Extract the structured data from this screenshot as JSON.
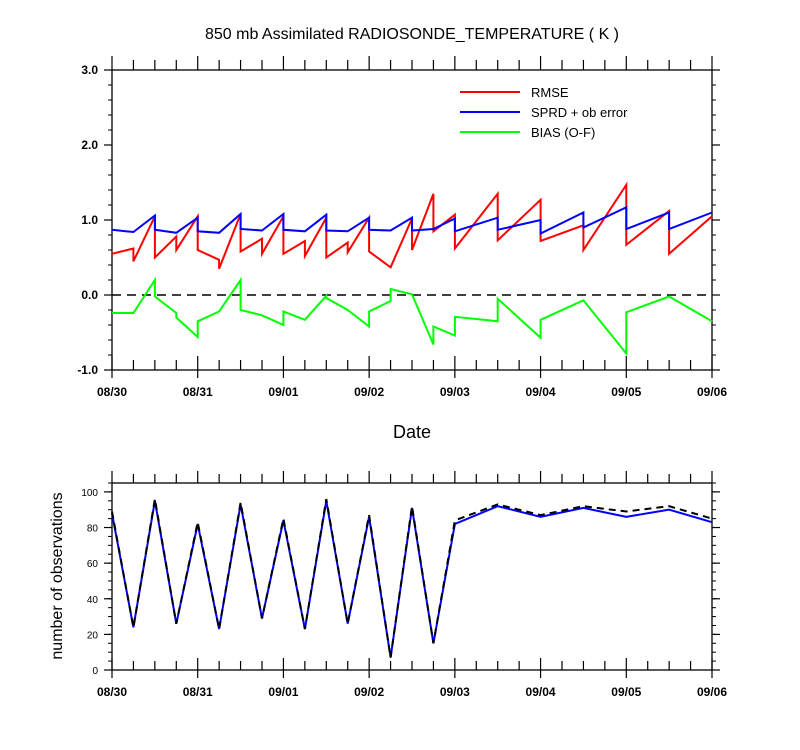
{
  "chart_data": [
    {
      "type": "line",
      "title": "850 mb Assimilated RADIOSONDE_TEMPERATURE ( K )",
      "xlabel": "Date",
      "ylabel": "",
      "xlim": [
        0,
        7
      ],
      "ylim": [
        -1.0,
        3.0
      ],
      "x_tick_labels": [
        "08/30",
        "08/31",
        "09/01",
        "09/02",
        "09/03",
        "09/04",
        "09/05",
        "09/06"
      ],
      "y_tick_labels": [
        "-1.0",
        "0.0",
        "1.0",
        "2.0",
        "3.0"
      ],
      "reference_line": {
        "y": 0.0,
        "style": "dashed",
        "color": "#000000"
      },
      "legend_position": "top-right",
      "series": [
        {
          "name": "RMSE",
          "color": "#ff0000",
          "points": [
            [
              0,
              0.55
            ],
            [
              0.25,
              0.62
            ],
            [
              0.25,
              0.45
            ],
            [
              0.5,
              1.05
            ],
            [
              0.5,
              0.5
            ],
            [
              0.75,
              0.78
            ],
            [
              0.75,
              0.6
            ],
            [
              1,
              1.05
            ],
            [
              1,
              0.6
            ],
            [
              1.25,
              0.47
            ],
            [
              1.25,
              0.35
            ],
            [
              1.5,
              1.08
            ],
            [
              1.5,
              0.58
            ],
            [
              1.75,
              0.75
            ],
            [
              1.75,
              0.55
            ],
            [
              2,
              1.05
            ],
            [
              2,
              0.55
            ],
            [
              2.25,
              0.72
            ],
            [
              2.25,
              0.52
            ],
            [
              2.5,
              1.03
            ],
            [
              2.5,
              0.5
            ],
            [
              2.75,
              0.7
            ],
            [
              2.75,
              0.57
            ],
            [
              3,
              1.03
            ],
            [
              3,
              0.58
            ],
            [
              3.25,
              0.37
            ],
            [
              3.5,
              1.02
            ],
            [
              3.5,
              0.6
            ],
            [
              3.75,
              1.35
            ],
            [
              3.75,
              0.85
            ],
            [
              4,
              1.07
            ],
            [
              4,
              0.62
            ],
            [
              4.5,
              1.35
            ],
            [
              4.5,
              0.73
            ],
            [
              5,
              1.27
            ],
            [
              5,
              0.72
            ],
            [
              5.5,
              0.93
            ],
            [
              5.5,
              0.6
            ],
            [
              6,
              1.47
            ],
            [
              6,
              0.67
            ],
            [
              6.5,
              1.12
            ],
            [
              6.5,
              0.55
            ],
            [
              7,
              1.05
            ]
          ]
        },
        {
          "name": "SPRD + ob error",
          "color": "#0000ff",
          "points": [
            [
              0,
              0.87
            ],
            [
              0.25,
              0.84
            ],
            [
              0.5,
              1.06
            ],
            [
              0.5,
              0.87
            ],
            [
              0.75,
              0.83
            ],
            [
              1,
              1.03
            ],
            [
              1,
              0.85
            ],
            [
              1.25,
              0.83
            ],
            [
              1.5,
              1.08
            ],
            [
              1.5,
              0.88
            ],
            [
              1.75,
              0.86
            ],
            [
              2,
              1.08
            ],
            [
              2,
              0.87
            ],
            [
              2.25,
              0.85
            ],
            [
              2.5,
              1.07
            ],
            [
              2.5,
              0.86
            ],
            [
              2.75,
              0.85
            ],
            [
              3,
              1.03
            ],
            [
              3,
              0.87
            ],
            [
              3.25,
              0.86
            ],
            [
              3.5,
              1.03
            ],
            [
              3.5,
              0.86
            ],
            [
              3.75,
              0.88
            ],
            [
              4,
              1.02
            ],
            [
              4,
              0.85
            ],
            [
              4.5,
              1.03
            ],
            [
              4.5,
              0.87
            ],
            [
              5,
              1.0
            ],
            [
              5,
              0.82
            ],
            [
              5.5,
              1.1
            ],
            [
              5.5,
              0.9
            ],
            [
              6,
              1.17
            ],
            [
              6,
              0.88
            ],
            [
              6.5,
              1.1
            ],
            [
              6.5,
              0.88
            ],
            [
              7,
              1.1
            ]
          ]
        },
        {
          "name": "BIAS (O-F)",
          "color": "#00ff00",
          "points": [
            [
              0,
              -0.24
            ],
            [
              0.25,
              -0.24
            ],
            [
              0.5,
              0.2
            ],
            [
              0.5,
              -0.02
            ],
            [
              0.75,
              -0.24
            ],
            [
              0.75,
              -0.3
            ],
            [
              1,
              -0.56
            ],
            [
              1,
              -0.35
            ],
            [
              1.25,
              -0.22
            ],
            [
              1.5,
              0.2
            ],
            [
              1.5,
              -0.2
            ],
            [
              1.75,
              -0.27
            ],
            [
              2,
              -0.4
            ],
            [
              2,
              -0.22
            ],
            [
              2.25,
              -0.33
            ],
            [
              2.5,
              -0.01
            ],
            [
              2.5,
              -0.04
            ],
            [
              2.75,
              -0.2
            ],
            [
              3,
              -0.42
            ],
            [
              3,
              -0.22
            ],
            [
              3.25,
              -0.08
            ],
            [
              3.25,
              0.08
            ],
            [
              3.5,
              0.01
            ],
            [
              3.75,
              -0.66
            ],
            [
              3.75,
              -0.42
            ],
            [
              4,
              -0.54
            ],
            [
              4,
              -0.29
            ],
            [
              4.5,
              -0.35
            ],
            [
              4.5,
              -0.05
            ],
            [
              5,
              -0.57
            ],
            [
              5,
              -0.33
            ],
            [
              5.5,
              -0.07
            ],
            [
              6,
              -0.78
            ],
            [
              6,
              -0.23
            ],
            [
              6.5,
              -0.02
            ],
            [
              7,
              -0.35
            ]
          ]
        }
      ]
    },
    {
      "type": "line",
      "title": "",
      "xlabel": "",
      "ylabel": "number of observations",
      "xlim": [
        0,
        7
      ],
      "ylim": [
        0,
        105
      ],
      "x_tick_labels": [
        "08/30",
        "08/31",
        "09/01",
        "09/02",
        "09/03",
        "09/04",
        "09/05",
        "09/06"
      ],
      "y_tick_labels": [
        "0",
        "20",
        "40",
        "60",
        "80",
        "100"
      ],
      "series": [
        {
          "color": "#0000ff",
          "style": "solid",
          "points": [
            [
              0,
              88
            ],
            [
              0.25,
              24
            ],
            [
              0.5,
              95
            ],
            [
              0.75,
              26
            ],
            [
              1,
              82
            ],
            [
              1.25,
              23
            ],
            [
              1.5,
              93
            ],
            [
              1.75,
              29
            ],
            [
              2,
              84
            ],
            [
              2.25,
              23
            ],
            [
              2.5,
              95
            ],
            [
              2.75,
              26
            ],
            [
              3,
              86
            ],
            [
              3.25,
              7
            ],
            [
              3.5,
              91
            ],
            [
              3.75,
              15
            ],
            [
              4,
              82
            ],
            [
              4.5,
              92
            ],
            [
              5,
              86
            ],
            [
              5.5,
              91
            ],
            [
              6,
              86
            ],
            [
              6.5,
              90
            ],
            [
              7,
              83
            ]
          ]
        },
        {
          "color": "#000000",
          "style": "dashed",
          "points": [
            [
              0,
              89
            ],
            [
              0.25,
              24
            ],
            [
              0.5,
              96
            ],
            [
              0.75,
              26
            ],
            [
              1,
              83
            ],
            [
              1.25,
              23
            ],
            [
              1.5,
              94
            ],
            [
              1.75,
              29
            ],
            [
              2,
              85
            ],
            [
              2.25,
              23
            ],
            [
              2.5,
              96
            ],
            [
              2.75,
              26
            ],
            [
              3,
              87
            ],
            [
              3.25,
              7
            ],
            [
              3.5,
              92
            ],
            [
              3.75,
              15
            ],
            [
              4,
              84
            ],
            [
              4.5,
              93
            ],
            [
              5,
              87
            ],
            [
              5.5,
              92
            ],
            [
              6,
              89
            ],
            [
              6.5,
              92
            ],
            [
              7,
              85
            ]
          ]
        }
      ]
    }
  ]
}
